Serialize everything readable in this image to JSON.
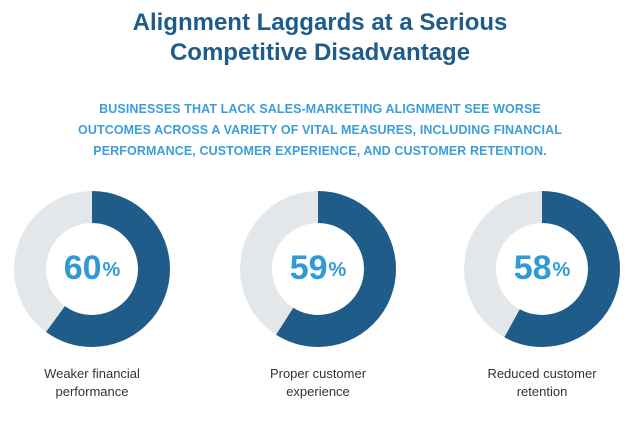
{
  "title_lines": [
    "Alignment Laggards at a Serious",
    "Competitive Disadvantage"
  ],
  "subtitle_lines": [
    "BUSINESSES THAT LACK SALES-MARKETING ALIGNMENT SEE WORSE",
    "OUTCOMES ACROSS A VARIETY OF VITAL MEASURES, INCLUDING FINANCIAL",
    "PERFORMANCE, CUSTOMER EXPERIENCE, AND CUSTOMER RETENTION."
  ],
  "colors": {
    "title": "#1f5c8a",
    "subtitle": "#3a9fd8",
    "ring_filled": "#1f5c8a",
    "ring_track": "#e4e7ea",
    "percent_text": "#2f9ad6",
    "caption_text": "#333333"
  },
  "chart_data": {
    "type": "pie",
    "items": [
      {
        "value": 60,
        "value_text": "60",
        "unit": "%",
        "label_lines": [
          "Weaker financial",
          "performance"
        ]
      },
      {
        "value": 59,
        "value_text": "59",
        "unit": "%",
        "label_lines": [
          "Proper customer",
          "experience"
        ]
      },
      {
        "value": 58,
        "value_text": "58",
        "unit": "%",
        "label_lines": [
          "Reduced customer",
          "retention"
        ]
      }
    ]
  }
}
